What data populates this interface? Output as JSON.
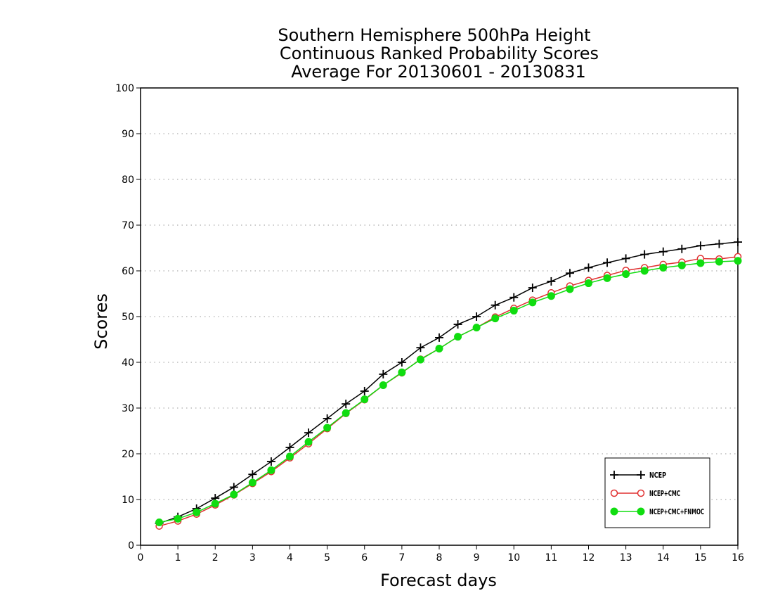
{
  "chart_data": {
    "type": "line",
    "title": [
      "Southern Hemisphere 500hPa Height",
      "Continuous Ranked Probability Scores",
      "Average For 20130601 - 20130831"
    ],
    "xlabel": "Forecast days",
    "ylabel": "Scores",
    "xlim": [
      0,
      16
    ],
    "ylim": [
      0,
      100
    ],
    "xticks": [
      0,
      1,
      2,
      3,
      4,
      5,
      6,
      7,
      8,
      9,
      10,
      11,
      12,
      13,
      14,
      15,
      16
    ],
    "yticks": [
      0,
      10,
      20,
      30,
      40,
      50,
      60,
      70,
      80,
      90,
      100
    ],
    "grid": true,
    "legend_position": "bottom-right",
    "x": [
      0.5,
      1,
      1.5,
      2,
      2.5,
      3,
      3.5,
      4,
      4.5,
      5,
      5.5,
      6,
      6.5,
      7,
      7.5,
      8,
      8.5,
      9,
      9.5,
      10,
      10.5,
      11,
      11.5,
      12,
      12.5,
      13,
      13.5,
      14,
      14.5,
      15,
      15.5,
      16
    ],
    "series": [
      {
        "name": "NCEP",
        "color": "#000000",
        "marker": "plus",
        "values": [
          4.8,
          6.2,
          8.0,
          10.3,
          12.7,
          15.5,
          18.3,
          21.4,
          24.6,
          27.7,
          30.9,
          33.7,
          37.4,
          40.0,
          43.2,
          45.4,
          48.3,
          50.0,
          52.5,
          54.2,
          56.3,
          57.7,
          59.5,
          60.7,
          61.8,
          62.7,
          63.6,
          64.2,
          64.8,
          65.5,
          65.9,
          66.3
        ]
      },
      {
        "name": "NCEP+CMC",
        "color": "#e03030",
        "marker": "open-circle",
        "values": [
          4.2,
          5.3,
          6.8,
          8.8,
          11.0,
          13.5,
          16.1,
          19.1,
          22.2,
          25.5,
          28.8,
          31.8,
          35.0,
          37.7,
          40.7,
          43.0,
          45.6,
          47.6,
          49.9,
          51.8,
          53.6,
          55.2,
          56.7,
          57.9,
          59.0,
          60.1,
          60.7,
          61.4,
          61.9,
          62.7,
          62.6,
          63.1
        ]
      },
      {
        "name": "NCEP+CMC+FNMOC",
        "color": "#10dd10",
        "marker": "filled-circle",
        "values": [
          5.0,
          5.8,
          7.2,
          9.1,
          11.1,
          13.7,
          16.4,
          19.4,
          22.6,
          25.7,
          28.9,
          31.9,
          35.0,
          37.8,
          40.6,
          43.0,
          45.6,
          47.6,
          49.6,
          51.3,
          53.1,
          54.5,
          56.0,
          57.3,
          58.4,
          59.3,
          60.0,
          60.7,
          61.2,
          61.7,
          62.0,
          62.2
        ]
      }
    ]
  }
}
